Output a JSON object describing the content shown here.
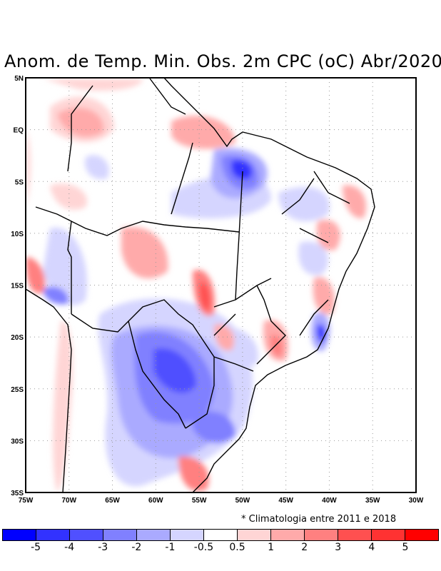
{
  "title": "Anom. de Temp. Min. Obs. 2m CPC (oC) Abr/2020",
  "note": "* Climatologia entre 2011 e 2018",
  "lon_labels": [
    "75W",
    "70W",
    "65W",
    "60W",
    "55W",
    "50W",
    "45W",
    "40W",
    "35W",
    "30W"
  ],
  "lat_labels": [
    "5N",
    "EQ",
    "5S",
    "10S",
    "15S",
    "20S",
    "25S",
    "30S",
    "35S"
  ],
  "colorbar": {
    "colors": [
      "#0000ff",
      "#3232ff",
      "#5050ff",
      "#8080ff",
      "#aaaaff",
      "#d5d5ff",
      "#ffffff",
      "#ffd5d5",
      "#ffaaaa",
      "#ff8080",
      "#ff5050",
      "#ff3232",
      "#ff0000"
    ],
    "labels": [
      "-5",
      "-4",
      "-3",
      "-2",
      "-1",
      "-0.5",
      "0.5",
      "1",
      "2",
      "3",
      "4",
      "5"
    ]
  }
}
